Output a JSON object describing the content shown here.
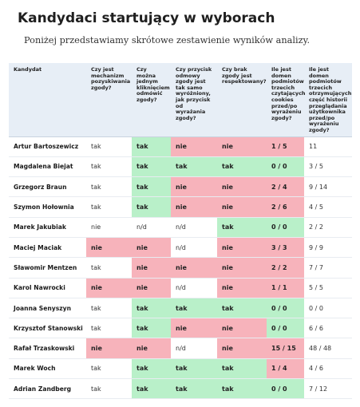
{
  "title": "Kandydaci startujący w wyborach",
  "subtitle": "Poniżej przedstawiamy skrótowe zestawienie wyników analizy.",
  "table": {
    "headers": [
      "Kandydat",
      "Czy jest mechanizm pozyskiwania zgody?",
      "Czy można jednym kliknięciem odmówić zgody?",
      "Czy przycisk odmowy zgody jest tak samo wyróżniony, jak przycisk od wyrażania zgody?",
      "Czy brak zgody jest respektowany?",
      "Ile jest domen podmiotów trzecich czytających cookies przed/po wyrażeniu zgody?",
      "Ile jest domen podmiotów trzecich otrzymujących część historii przeglądania użytkownika przed/po wyrażeniu zgody?"
    ],
    "rows": [
      [
        "Artur Bartoszewicz",
        "tak",
        "tak",
        "nie",
        "nie",
        "1 / 5",
        "11"
      ],
      [
        "Magdalena Biejat",
        "tak",
        "tak",
        "tak",
        "tak",
        "0 / 0",
        "3 / 5"
      ],
      [
        "Grzegorz Braun",
        "tak",
        "tak",
        "nie",
        "nie",
        "2 / 4",
        "9 / 14"
      ],
      [
        "Szymon Hołownia",
        "tak",
        "tak",
        "nie",
        "nie",
        "2 / 6",
        "4 / 5"
      ],
      [
        "Marek Jakubiak",
        "nie",
        "n/d",
        "n/d",
        "tak",
        "0 / 0",
        "2 / 2"
      ],
      [
        "Maciej Maciak",
        "nie",
        "nie",
        "n/d",
        "nie",
        "3 / 3",
        "9 / 9"
      ],
      [
        "Sławomir Mentzen",
        "tak",
        "nie",
        "nie",
        "nie",
        "2 / 2",
        "7 / 7"
      ],
      [
        "Karol Nawrocki",
        "nie",
        "nie",
        "n/d",
        "nie",
        "1 / 1",
        "5 / 5"
      ],
      [
        "Joanna Senyszyn",
        "tak",
        "tak",
        "tak",
        "tak",
        "0 / 0",
        "0 / 0"
      ],
      [
        "Krzysztof Stanowski",
        "tak",
        "tak",
        "nie",
        "nie",
        "0 / 0",
        "6 / 6"
      ],
      [
        "Rafał Trzaskowski",
        "nie",
        "nie",
        "n/d",
        "nie",
        "15 / 15",
        "48 / 48"
      ],
      [
        "Marek Woch",
        "tak",
        "tak",
        "tak",
        "tak",
        "1 / 4",
        "4 / 6"
      ],
      [
        "Adrian Zandberg",
        "tak",
        "tak",
        "tak",
        "tak",
        "0 / 0",
        "7 / 12"
      ]
    ],
    "cell_status": [
      [
        "",
        "plain",
        "y",
        "n",
        "n",
        "n",
        "plain"
      ],
      [
        "",
        "plain",
        "y",
        "y",
        "y",
        "y",
        "plain"
      ],
      [
        "",
        "plain",
        "y",
        "n",
        "n",
        "n",
        "plain"
      ],
      [
        "",
        "plain",
        "y",
        "n",
        "n",
        "n",
        "plain"
      ],
      [
        "",
        "plain",
        "plain",
        "plain",
        "y",
        "y",
        "plain"
      ],
      [
        "",
        "n",
        "n",
        "plain",
        "n",
        "n",
        "plain"
      ],
      [
        "",
        "plain",
        "n",
        "n",
        "n",
        "n",
        "plain"
      ],
      [
        "",
        "n",
        "n",
        "plain",
        "n",
        "n",
        "plain"
      ],
      [
        "",
        "plain",
        "y",
        "y",
        "y",
        "y",
        "plain"
      ],
      [
        "",
        "plain",
        "y",
        "n",
        "n",
        "y",
        "plain"
      ],
      [
        "",
        "n",
        "n",
        "plain",
        "n",
        "n",
        "plain"
      ],
      [
        "",
        "plain",
        "y",
        "y",
        "y",
        "n",
        "plain"
      ],
      [
        "",
        "plain",
        "y",
        "y",
        "y",
        "y",
        "plain"
      ]
    ]
  },
  "colors": {
    "positive": "#b9f0c9",
    "negative": "#f7b3bb",
    "header_bg": "#e7eef6"
  }
}
